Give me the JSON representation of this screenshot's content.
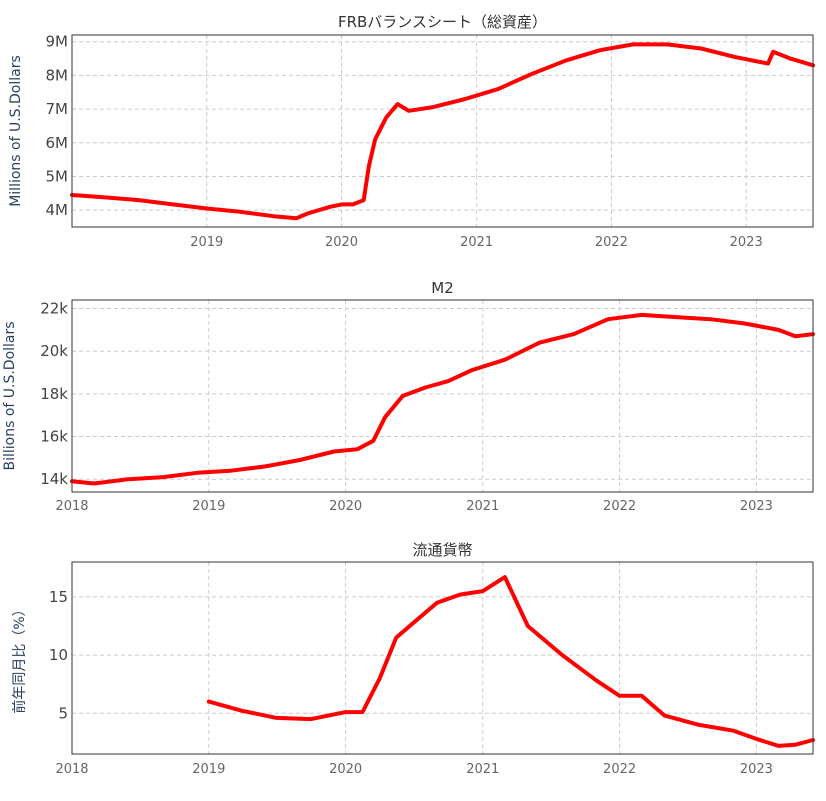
{
  "chart_data": [
    {
      "type": "line",
      "title": "FRBバランスシート（総資産）",
      "ylabel": "Millions of U.S.Dollars",
      "xlim": [
        "2018-01-01",
        "2023-07-01"
      ],
      "ylim": [
        3.5,
        9.2
      ],
      "x_ticks": [
        "2019",
        "2020",
        "2021",
        "2022",
        "2023"
      ],
      "y_ticks": [
        {
          "value": 4,
          "label": "4M"
        },
        {
          "value": 5,
          "label": "5M"
        },
        {
          "value": 6,
          "label": "6M"
        },
        {
          "value": 7,
          "label": "7M"
        },
        {
          "value": 8,
          "label": "8M"
        },
        {
          "value": 9,
          "label": "9M"
        }
      ],
      "grid": true,
      "series": [
        {
          "color": "#ff0000",
          "points": [
            [
              "2018-01-01",
              4.45
            ],
            [
              "2018-04-01",
              4.38
            ],
            [
              "2018-07-01",
              4.3
            ],
            [
              "2018-10-01",
              4.17
            ],
            [
              "2019-01-01",
              4.05
            ],
            [
              "2019-04-01",
              3.95
            ],
            [
              "2019-07-01",
              3.82
            ],
            [
              "2019-09-01",
              3.76
            ],
            [
              "2019-10-01",
              3.9
            ],
            [
              "2019-12-01",
              4.1
            ],
            [
              "2020-01-01",
              4.17
            ],
            [
              "2020-02-01",
              4.17
            ],
            [
              "2020-03-01",
              4.3
            ],
            [
              "2020-03-15",
              5.3
            ],
            [
              "2020-04-01",
              6.1
            ],
            [
              "2020-05-01",
              6.75
            ],
            [
              "2020-06-01",
              7.15
            ],
            [
              "2020-07-01",
              6.95
            ],
            [
              "2020-09-01",
              7.05
            ],
            [
              "2020-12-01",
              7.3
            ],
            [
              "2021-03-01",
              7.6
            ],
            [
              "2021-06-01",
              8.05
            ],
            [
              "2021-09-01",
              8.45
            ],
            [
              "2021-12-01",
              8.75
            ],
            [
              "2022-03-01",
              8.92
            ],
            [
              "2022-06-01",
              8.92
            ],
            [
              "2022-09-01",
              8.8
            ],
            [
              "2022-12-01",
              8.55
            ],
            [
              "2023-03-01",
              8.35
            ],
            [
              "2023-03-15",
              8.7
            ],
            [
              "2023-05-01",
              8.5
            ],
            [
              "2023-07-01",
              8.3
            ]
          ]
        }
      ]
    },
    {
      "type": "line",
      "title": "M2",
      "ylabel": "Billions of U.S.Dollars",
      "xlim": [
        "2018-01-01",
        "2023-06-01"
      ],
      "ylim": [
        13.4,
        22.4
      ],
      "x_ticks": [
        "2018",
        "2019",
        "2020",
        "2021",
        "2022",
        "2023"
      ],
      "y_ticks": [
        {
          "value": 14,
          "label": "14k"
        },
        {
          "value": 16,
          "label": "16k"
        },
        {
          "value": 18,
          "label": "18k"
        },
        {
          "value": 20,
          "label": "20k"
        },
        {
          "value": 22,
          "label": "22k"
        }
      ],
      "grid": true,
      "series": [
        {
          "color": "#ff0000",
          "points": [
            [
              "2018-01-01",
              13.9
            ],
            [
              "2018-03-01",
              13.8
            ],
            [
              "2018-06-01",
              14.0
            ],
            [
              "2018-09-01",
              14.1
            ],
            [
              "2018-12-01",
              14.3
            ],
            [
              "2019-03-01",
              14.4
            ],
            [
              "2019-06-01",
              14.6
            ],
            [
              "2019-09-01",
              14.9
            ],
            [
              "2019-12-01",
              15.3
            ],
            [
              "2020-02-01",
              15.4
            ],
            [
              "2020-03-15",
              15.8
            ],
            [
              "2020-04-15",
              16.9
            ],
            [
              "2020-06-01",
              17.9
            ],
            [
              "2020-08-01",
              18.3
            ],
            [
              "2020-10-01",
              18.6
            ],
            [
              "2020-12-01",
              19.1
            ],
            [
              "2021-03-01",
              19.6
            ],
            [
              "2021-06-01",
              20.4
            ],
            [
              "2021-09-01",
              20.8
            ],
            [
              "2021-12-01",
              21.5
            ],
            [
              "2022-03-01",
              21.7
            ],
            [
              "2022-06-01",
              21.6
            ],
            [
              "2022-09-01",
              21.5
            ],
            [
              "2022-12-01",
              21.3
            ],
            [
              "2023-03-01",
              21.0
            ],
            [
              "2023-04-15",
              20.7
            ],
            [
              "2023-06-01",
              20.8
            ]
          ]
        }
      ]
    },
    {
      "type": "line",
      "title": "流通貨幣",
      "ylabel": "前年同月比（%）",
      "xlim": [
        "2018-01-01",
        "2023-06-01"
      ],
      "ylim": [
        1.5,
        18
      ],
      "x_ticks": [
        "2018",
        "2019",
        "2020",
        "2021",
        "2022",
        "2023"
      ],
      "y_ticks": [
        {
          "value": 5,
          "label": "5"
        },
        {
          "value": 10,
          "label": "10"
        },
        {
          "value": 15,
          "label": "15"
        }
      ],
      "grid": true,
      "series": [
        {
          "color": "#ff0000",
          "points": [
            [
              "2019-01-01",
              6.0
            ],
            [
              "2019-04-01",
              5.2
            ],
            [
              "2019-07-01",
              4.6
            ],
            [
              "2019-10-01",
              4.5
            ],
            [
              "2020-01-01",
              5.1
            ],
            [
              "2020-02-15",
              5.1
            ],
            [
              "2020-04-01",
              8.0
            ],
            [
              "2020-05-15",
              11.5
            ],
            [
              "2020-07-01",
              12.8
            ],
            [
              "2020-09-01",
              14.5
            ],
            [
              "2020-11-01",
              15.2
            ],
            [
              "2021-01-01",
              15.5
            ],
            [
              "2021-03-01",
              16.7
            ],
            [
              "2021-05-01",
              12.5
            ],
            [
              "2021-08-01",
              10.0
            ],
            [
              "2021-11-01",
              7.8
            ],
            [
              "2022-01-01",
              6.5
            ],
            [
              "2022-03-01",
              6.5
            ],
            [
              "2022-05-01",
              4.8
            ],
            [
              "2022-08-01",
              4.0
            ],
            [
              "2022-11-01",
              3.5
            ],
            [
              "2023-01-01",
              2.8
            ],
            [
              "2023-03-01",
              2.2
            ],
            [
              "2023-04-15",
              2.3
            ],
            [
              "2023-06-01",
              2.7
            ]
          ]
        }
      ]
    }
  ]
}
